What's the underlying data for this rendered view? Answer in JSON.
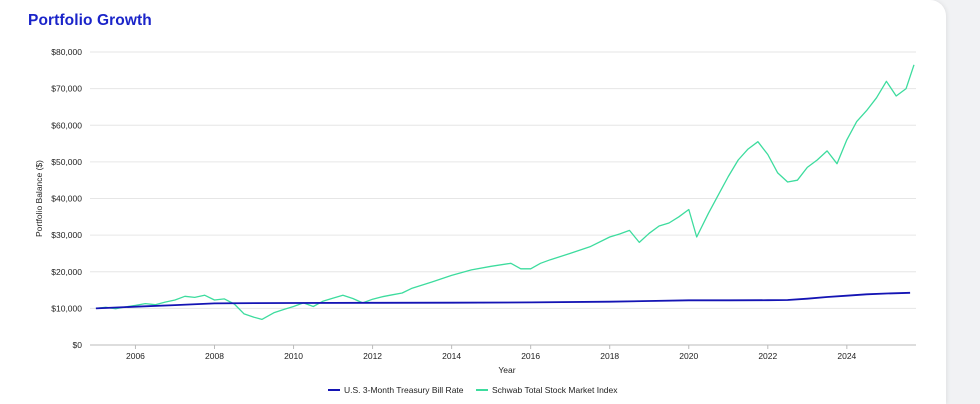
{
  "panel": {
    "title": "Portfolio Growth"
  },
  "chart_data": {
    "type": "line",
    "title": "",
    "xlabel": "Year",
    "ylabel": "Portfolio Balance ($)",
    "xlim": [
      2004.85,
      2025.75
    ],
    "ylim": [
      0,
      80000
    ],
    "x_ticks": [
      2006,
      2008,
      2010,
      2012,
      2014,
      2016,
      2018,
      2020,
      2022,
      2024
    ],
    "y_ticks": [
      0,
      10000,
      20000,
      30000,
      40000,
      50000,
      60000,
      70000,
      80000
    ],
    "y_tick_labels": [
      "$0",
      "$10,000",
      "$20,000",
      "$30,000",
      "$40,000",
      "$50,000",
      "$60,000",
      "$70,000",
      "$80,000"
    ],
    "grid": "horizontal",
    "legend_position": "bottom",
    "series": [
      {
        "name": "U.S. 3-Month Treasury Bill Rate",
        "color": "#1414b4",
        "x": [
          2005,
          2006,
          2007,
          2008,
          2009,
          2010,
          2012,
          2014,
          2016,
          2018,
          2019,
          2020,
          2021,
          2022,
          2022.5,
          2023,
          2023.5,
          2024,
          2024.5,
          2025,
          2025.6
        ],
        "y": [
          10000,
          10450,
          10900,
          11350,
          11450,
          11480,
          11520,
          11560,
          11620,
          11820,
          12020,
          12200,
          12200,
          12220,
          12300,
          12650,
          13100,
          13450,
          13850,
          14050,
          14250
        ]
      },
      {
        "name": "Schwab Total Stock Market Index",
        "color": "#3ddc9e",
        "x": [
          2005,
          2005.25,
          2005.5,
          2005.75,
          2006,
          2006.25,
          2006.5,
          2006.75,
          2007,
          2007.25,
          2007.5,
          2007.75,
          2008,
          2008.25,
          2008.5,
          2008.75,
          2009,
          2009.2,
          2009.5,
          2009.75,
          2010,
          2010.25,
          2010.5,
          2010.75,
          2011,
          2011.25,
          2011.5,
          2011.75,
          2012,
          2012.25,
          2012.5,
          2012.75,
          2013,
          2013.5,
          2014,
          2014.5,
          2015,
          2015.5,
          2015.75,
          2016,
          2016.25,
          2016.5,
          2017,
          2017.5,
          2018,
          2018.25,
          2018.5,
          2018.75,
          2019,
          2019.25,
          2019.5,
          2019.75,
          2020,
          2020.2,
          2020.5,
          2020.75,
          2021,
          2021.25,
          2021.5,
          2021.75,
          2022,
          2022.25,
          2022.5,
          2022.75,
          2023,
          2023.25,
          2023.5,
          2023.75,
          2024,
          2024.25,
          2024.5,
          2024.75,
          2025,
          2025.25,
          2025.5,
          2025.7
        ],
        "y": [
          10000,
          10300,
          9900,
          10400,
          10800,
          11300,
          11000,
          11700,
          12300,
          13300,
          13000,
          13600,
          12300,
          12600,
          11200,
          8500,
          7600,
          7000,
          8800,
          9700,
          10500,
          11500,
          10500,
          12000,
          12800,
          13600,
          12700,
          11500,
          12500,
          13200,
          13700,
          14200,
          15500,
          17200,
          19000,
          20500,
          21500,
          22300,
          20800,
          20800,
          22300,
          23300,
          25000,
          26800,
          29500,
          30300,
          31300,
          28000,
          30500,
          32500,
          33300,
          35000,
          37000,
          29500,
          36000,
          41000,
          46000,
          50500,
          53500,
          55500,
          52000,
          47000,
          44500,
          45000,
          48500,
          50500,
          53000,
          49500,
          56000,
          61000,
          64000,
          67500,
          72000,
          68000,
          70000,
          76500
        ]
      }
    ]
  }
}
